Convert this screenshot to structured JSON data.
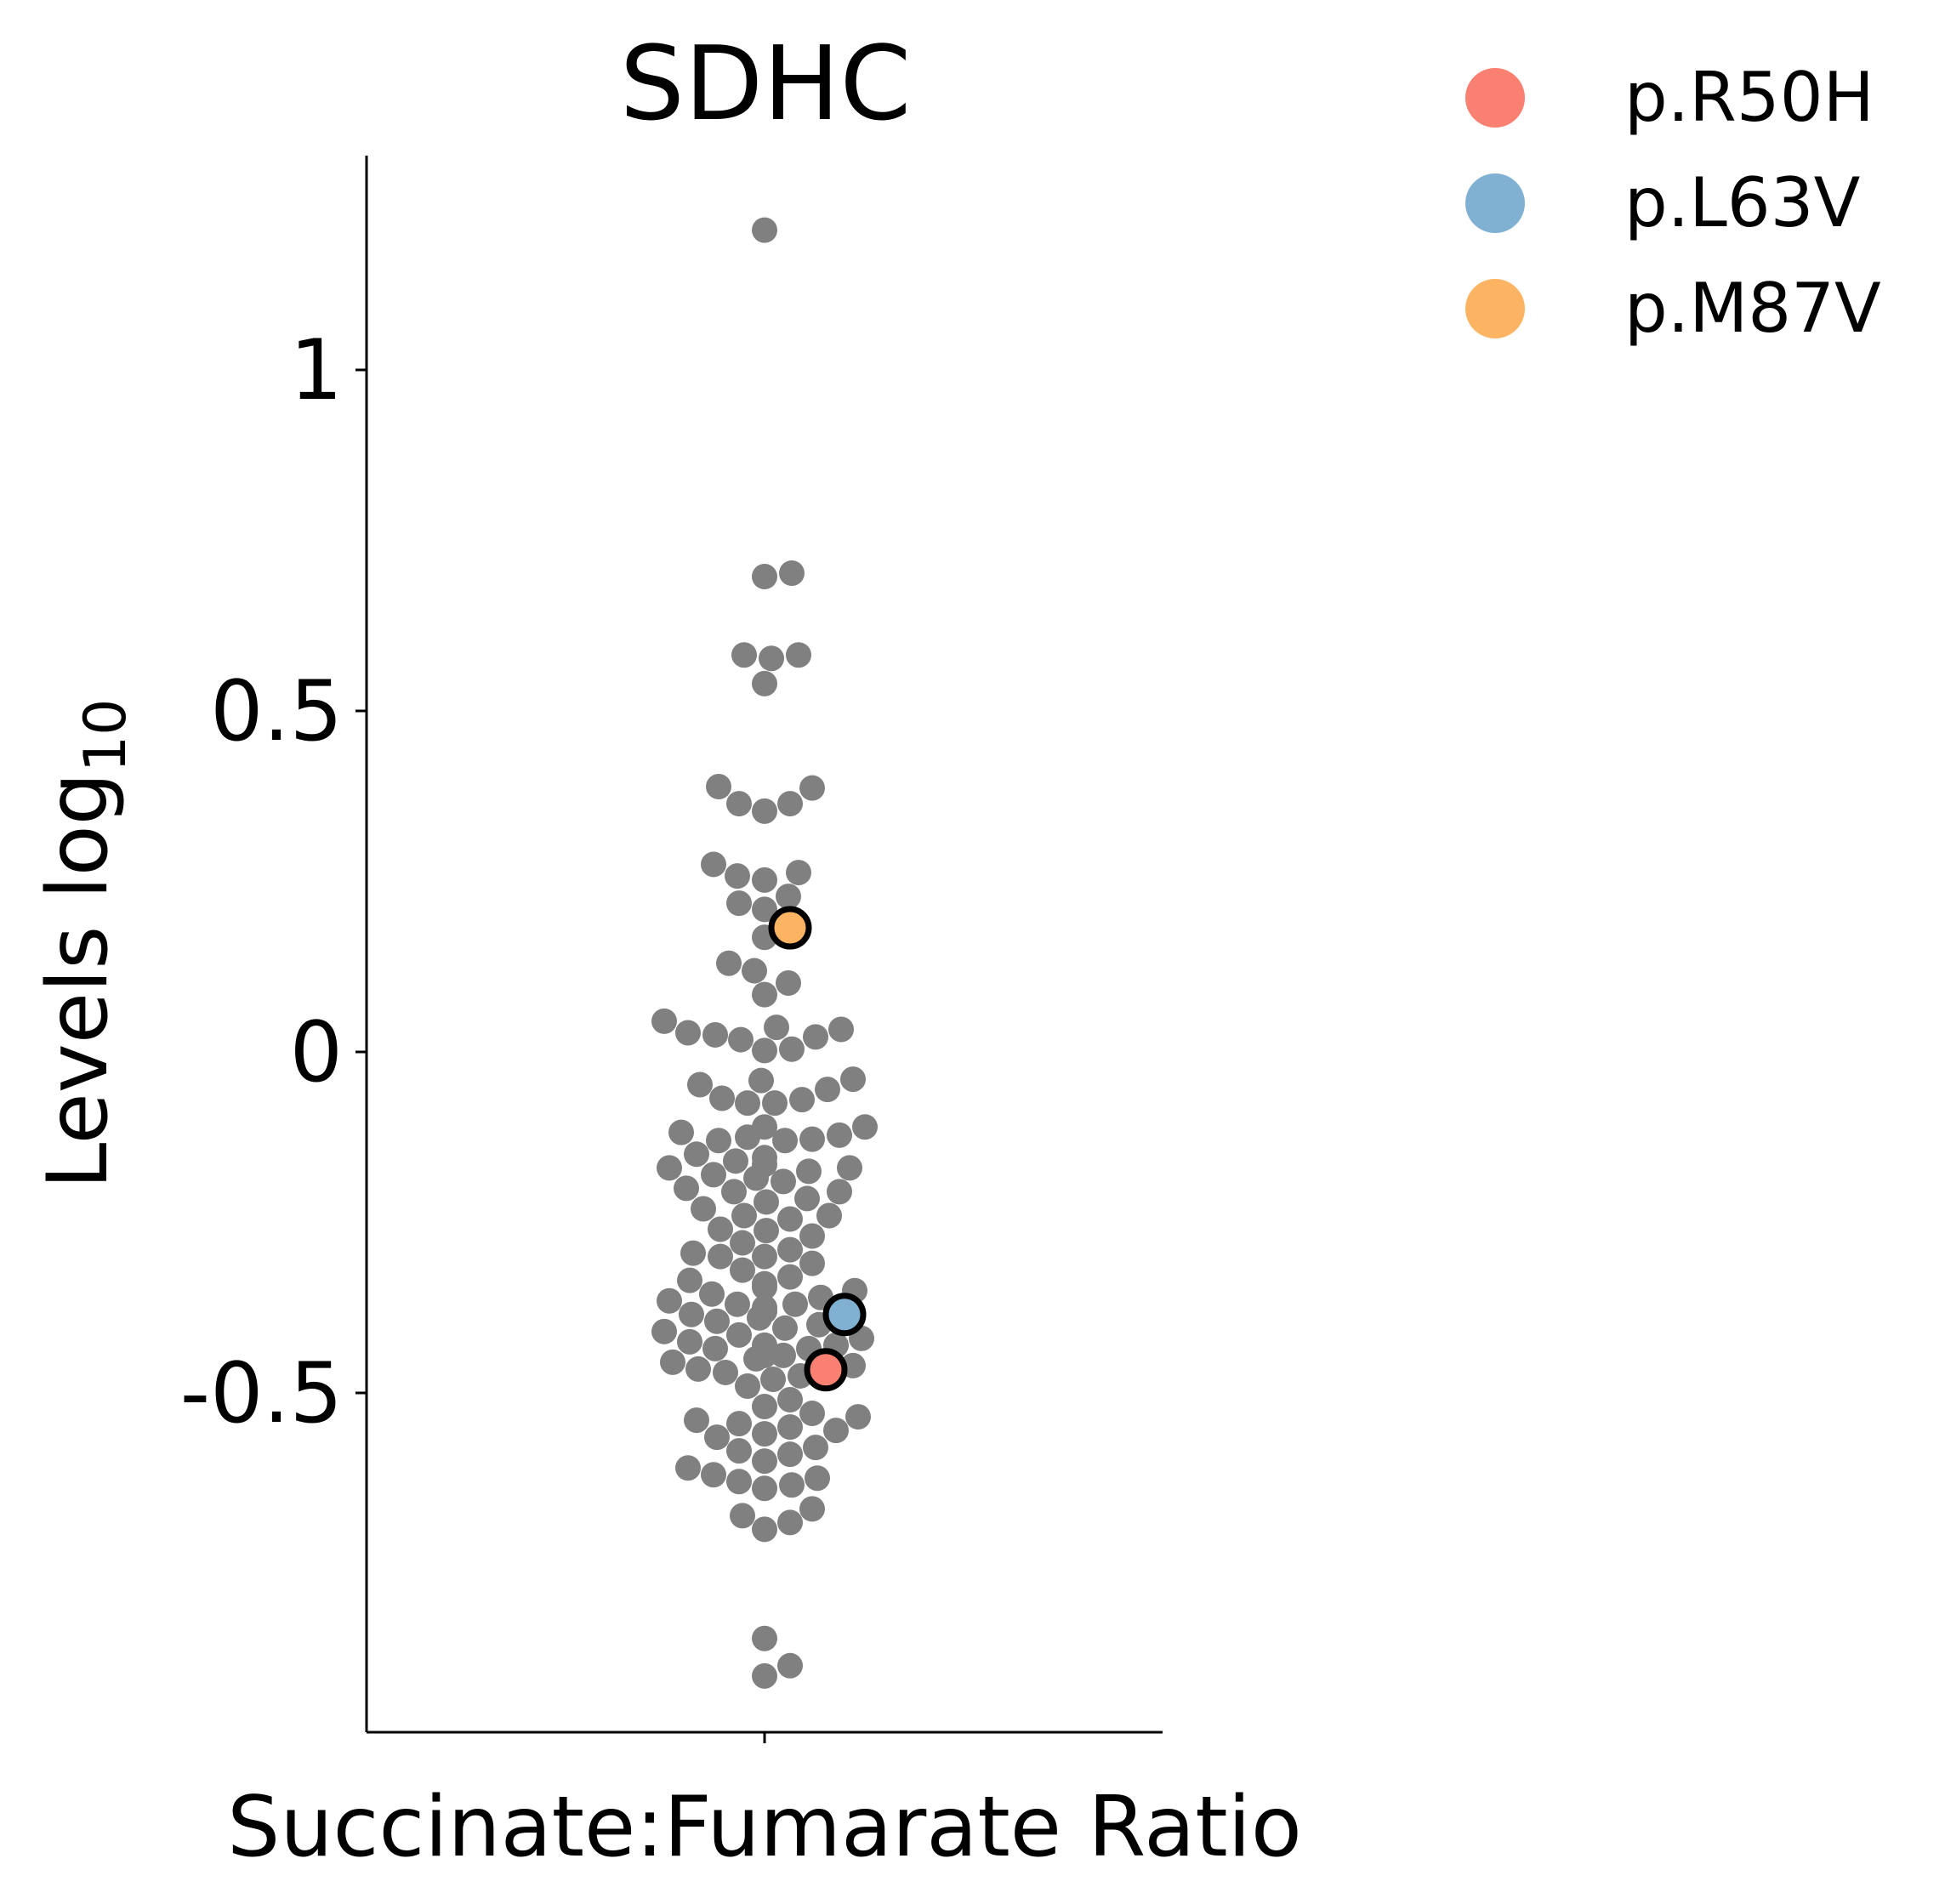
{
  "chart_data": {
    "type": "scatter",
    "title": "SDHC",
    "xlabel": "Succinate:Fumarate Ratio",
    "ylabel": "Levels log",
    "ylabel_subscript": "10",
    "yticks": [
      {
        "value": 1,
        "label": "1"
      },
      {
        "value": 0.5,
        "label": "0.5"
      },
      {
        "value": 0,
        "label": "0"
      },
      {
        "value": -0.5,
        "label": "-0.5"
      }
    ],
    "ylim": [
      -0.99,
      1.31
    ],
    "grid": false,
    "legend_position": "top-right, outside plot",
    "background_color": "#808080",
    "series": [
      {
        "name": "p.R50H",
        "color": "#fa8072",
        "values": [
          -0.466
        ]
      },
      {
        "name": "p.L63V",
        "color": "#80b1d3",
        "values": [
          -0.385
        ]
      },
      {
        "name": "p.M87V",
        "color": "#fdb462",
        "values": [
          0.182
        ]
      }
    ],
    "background_values": [
      1.205,
      0.702,
      0.697,
      0.582,
      0.577,
      0.582,
      0.54,
      0.387,
      0.389,
      0.364,
      0.364,
      0.353,
      0.275,
      0.263,
      0.258,
      0.252,
      0.228,
      0.218,
      0.209,
      0.168,
      0.13,
      0.119,
      0.101,
      0.084,
      0.045,
      0.036,
      0.033,
      0.028,
      0.025,
      0.022,
      0.018,
      0.004,
      0.002,
      -0.04,
      -0.042,
      -0.048,
      -0.055,
      -0.068,
      -0.07,
      -0.075,
      -0.075,
      -0.11,
      -0.11,
      -0.118,
      -0.122,
      -0.125,
      -0.128,
      -0.13,
      -0.13,
      -0.15,
      -0.155,
      -0.16,
      -0.165,
      -0.17,
      -0.17,
      -0.175,
      -0.18,
      -0.185,
      -0.19,
      -0.2,
      -0.205,
      -0.205,
      -0.215,
      -0.22,
      -0.23,
      -0.24,
      -0.24,
      -0.245,
      -0.26,
      -0.262,
      -0.27,
      -0.28,
      -0.29,
      -0.295,
      -0.3,
      -0.3,
      -0.31,
      -0.32,
      -0.33,
      -0.335,
      -0.34,
      -0.345,
      -0.35,
      -0.355,
      -0.36,
      -0.365,
      -0.37,
      -0.37,
      -0.375,
      -0.38,
      -0.38,
      -0.385,
      -0.39,
      -0.395,
      -0.4,
      -0.405,
      -0.41,
      -0.415,
      -0.42,
      -0.425,
      -0.43,
      -0.43,
      -0.435,
      -0.435,
      -0.44,
      -0.44,
      -0.44,
      -0.445,
      -0.445,
      -0.45,
      -0.455,
      -0.46,
      -0.465,
      -0.47,
      -0.475,
      -0.48,
      -0.49,
      -0.51,
      -0.52,
      -0.53,
      -0.535,
      -0.54,
      -0.545,
      -0.55,
      -0.555,
      -0.56,
      -0.565,
      -0.58,
      -0.585,
      -0.59,
      -0.6,
      -0.61,
      -0.62,
      -0.625,
      -0.63,
      -0.635,
      -0.64,
      -0.67,
      -0.68,
      -0.69,
      -0.7,
      -0.86,
      -0.9,
      -0.915
    ]
  }
}
